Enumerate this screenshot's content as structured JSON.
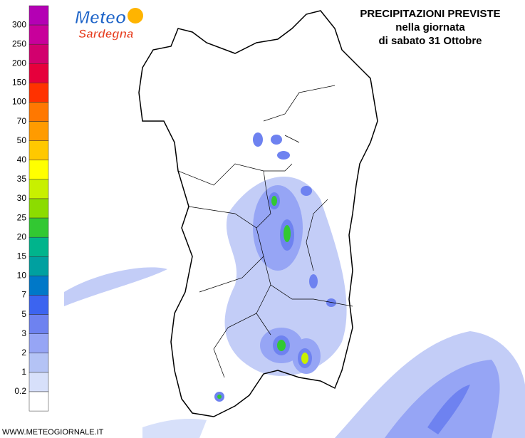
{
  "logo": {
    "line1": "Meteo",
    "line2": "Sardegna"
  },
  "title": {
    "line1": "PRECIPITAZIONI PREVISTE",
    "line2": "nella giornata",
    "line3": "di sabato 31 Ottobre"
  },
  "legend": {
    "labels": [
      "300",
      "250",
      "200",
      "150",
      "100",
      "70",
      "50",
      "40",
      "35",
      "30",
      "25",
      "20",
      "15",
      "10",
      "7",
      "5",
      "3",
      "2",
      "1",
      "0.2"
    ],
    "colors": [
      "#b400b4",
      "#c8009b",
      "#d2006e",
      "#e6003c",
      "#ff3200",
      "#ff7800",
      "#ff9b00",
      "#ffc800",
      "#ffff00",
      "#c8f000",
      "#8cdc00",
      "#32c832",
      "#00b48c",
      "#00a0a0",
      "#0078c8",
      "#3c64f0",
      "#6e82f0",
      "#96a5f5",
      "#b4c3f5",
      "#d7e0fa",
      "#ffffff"
    ]
  },
  "footer": "WWW.METEOGIORNALE.IT"
}
